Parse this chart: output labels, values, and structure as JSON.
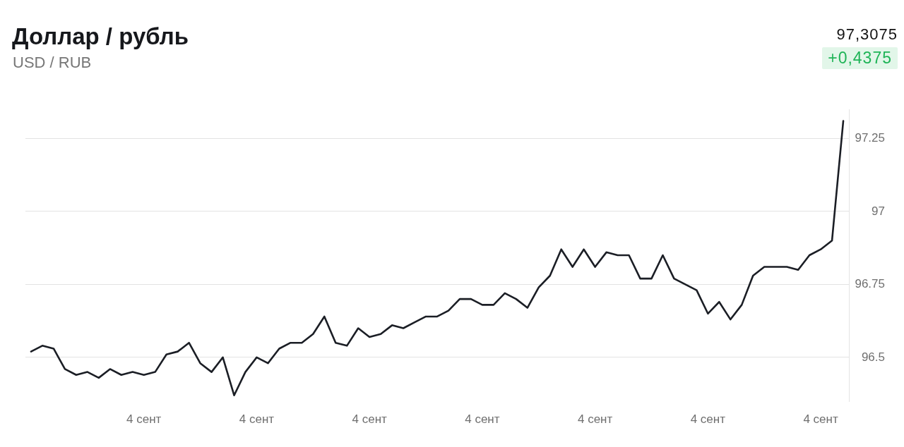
{
  "chart_data": {
    "type": "line",
    "title": "Доллар / рубль",
    "subtitle": "USD / RUB",
    "categories": [
      null,
      null,
      null,
      null,
      null,
      null,
      null,
      null,
      null,
      null,
      "4 сент",
      null,
      null,
      null,
      null,
      null,
      null,
      null,
      null,
      null,
      "4 сент",
      null,
      null,
      null,
      null,
      null,
      null,
      null,
      null,
      null,
      "4 сент",
      null,
      null,
      null,
      null,
      null,
      null,
      null,
      null,
      null,
      "4 сент",
      null,
      null,
      null,
      null,
      null,
      null,
      null,
      null,
      null,
      "4 сент",
      null,
      null,
      null,
      null,
      null,
      null,
      null,
      null,
      null,
      "4 сент",
      null,
      null,
      null,
      null,
      null,
      null,
      null,
      null,
      null,
      "4 сент",
      null,
      null
    ],
    "series": [
      {
        "color": "#1b1e25",
        "values": [
          96.52,
          96.54,
          96.53,
          96.46,
          96.44,
          96.45,
          96.43,
          96.46,
          96.44,
          96.45,
          96.44,
          96.45,
          96.51,
          96.52,
          96.55,
          96.48,
          96.45,
          96.5,
          96.37,
          96.45,
          96.5,
          96.48,
          96.53,
          96.55,
          96.55,
          96.58,
          96.64,
          96.55,
          96.54,
          96.6,
          96.57,
          96.58,
          96.61,
          96.6,
          96.62,
          96.64,
          96.64,
          96.66,
          96.7,
          96.7,
          96.68,
          96.68,
          96.72,
          96.7,
          96.67,
          96.74,
          96.78,
          96.87,
          96.81,
          96.87,
          96.81,
          96.86,
          96.85,
          96.85,
          96.77,
          96.77,
          96.85,
          96.77,
          96.75,
          96.73,
          96.65,
          96.69,
          96.63,
          96.68,
          96.78,
          96.81,
          96.81,
          96.81,
          96.8,
          96.85,
          96.87,
          96.9,
          97.31
        ]
      }
    ],
    "ylim": [
      96.35,
      97.35
    ],
    "yticks": [
      96.5,
      96.75,
      97,
      97.25
    ],
    "grid": "y",
    "marker": "none",
    "annotations": [
      "97,3075",
      "+0,4375"
    ]
  }
}
